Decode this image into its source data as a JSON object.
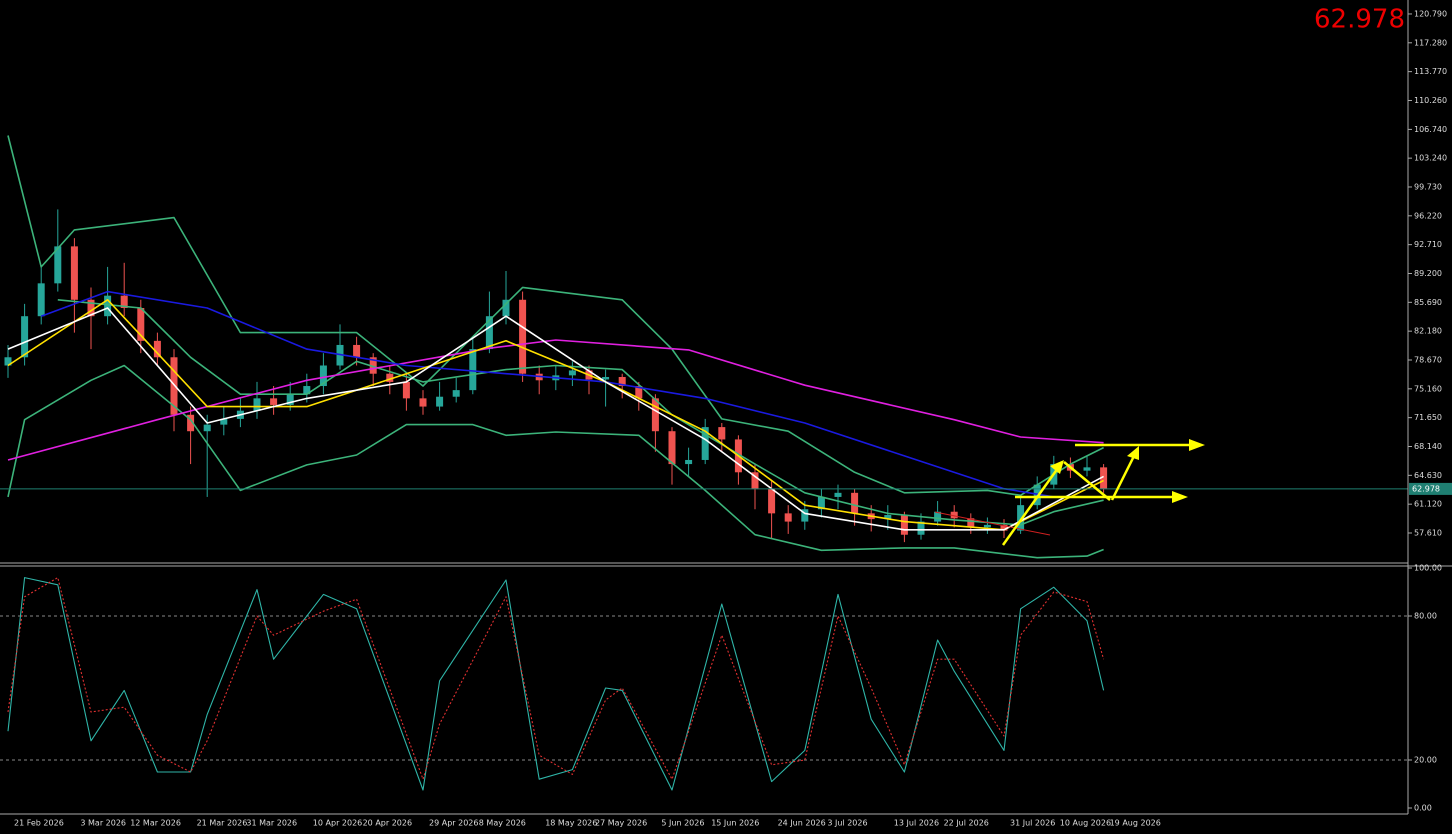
{
  "chart_data": [
    {
      "type": "candlestick",
      "categories": [
        "21 Feb 2026",
        null,
        null,
        null,
        "3 Mar 2026",
        null,
        null,
        "12 Mar 2026",
        null,
        null,
        null,
        "21 Mar 2026",
        null,
        null,
        "31 Mar 2026",
        null,
        null,
        null,
        "10 Apr 2026",
        null,
        null,
        "20 Apr 2026",
        null,
        null,
        null,
        "29 Apr 2026",
        null,
        null,
        "8 May 2026",
        null,
        null,
        null,
        "18 May 2026",
        null,
        null,
        "27 May 2026",
        null,
        null,
        null,
        "5 Jun 2026",
        null,
        null,
        "15 Jun 2026",
        null,
        null,
        null,
        "24 Jun 2026",
        null,
        null,
        "3 Jul 2026",
        null,
        null,
        null,
        "13 Jul 2026",
        null,
        null,
        "22 Jul 2026",
        null,
        null,
        null,
        "31 Jul 2026",
        null,
        null,
        "10 Aug 2026",
        null,
        null,
        "19 Aug 2026"
      ],
      "open": [
        78,
        79,
        84,
        88,
        92.5,
        86,
        84,
        86.5,
        85,
        81,
        79,
        72,
        70,
        70.8,
        71.5,
        72.5,
        74,
        73.2,
        74.5,
        75.5,
        78,
        80.5,
        79,
        77,
        76,
        74,
        73,
        74.2,
        75,
        80,
        84,
        86,
        77,
        76.2,
        76.8,
        77.4,
        76.3,
        76.6,
        75.5,
        74,
        70,
        66,
        66.5,
        70.5,
        69,
        65,
        63,
        60,
        59,
        60.5,
        62,
        62.5,
        60,
        59.3,
        59.8,
        57.4,
        59,
        60.2,
        59.4,
        58.3,
        58.6,
        57.9,
        61,
        63.5,
        66,
        65.2,
        65.6
      ],
      "high": [
        80.5,
        85.5,
        90,
        97,
        93.5,
        87.5,
        90,
        90.5,
        86,
        82,
        80,
        73,
        72,
        73,
        74,
        76,
        75.5,
        76,
        77,
        79.5,
        83,
        81.5,
        79.5,
        78,
        77,
        75,
        76,
        76.5,
        81.5,
        87,
        89.5,
        87,
        78,
        78,
        78.5,
        78,
        77.5,
        77,
        76,
        74.5,
        70.5,
        68,
        71.5,
        71,
        69.5,
        66,
        64,
        61,
        61.5,
        63,
        63.5,
        63,
        61,
        61,
        60.2,
        60,
        61.5,
        61,
        60,
        59.5,
        59.3,
        62,
        64.5,
        67,
        66.8,
        67,
        66
      ],
      "low": [
        76.5,
        78,
        83,
        87,
        82,
        80,
        83,
        84,
        79.5,
        78,
        70,
        66,
        62,
        69.5,
        70.5,
        71.5,
        72,
        72.5,
        73.5,
        74.5,
        77.5,
        78,
        75.5,
        74.5,
        72.5,
        72,
        72.5,
        73.5,
        74.5,
        79.5,
        83,
        76,
        74.5,
        75,
        75.5,
        74.5,
        73,
        74,
        72.5,
        67.5,
        63.5,
        64.5,
        66,
        67.5,
        63.5,
        60.5,
        57,
        57.5,
        58,
        59.5,
        60.5,
        58.5,
        57.8,
        58,
        56.5,
        56.8,
        58.5,
        58.3,
        57.5,
        57.5,
        57,
        57.5,
        60.5,
        63,
        64.3,
        64.5,
        62.5
      ],
      "close": [
        79,
        84,
        88,
        92.5,
        86,
        84,
        86.5,
        85,
        81,
        79,
        72,
        70,
        70.8,
        71.5,
        72.5,
        74,
        73.2,
        74.5,
        75.5,
        78,
        80.5,
        79,
        77,
        76,
        74,
        73,
        74.2,
        75,
        80,
        84,
        86,
        77,
        76.2,
        76.8,
        77.4,
        76.3,
        76.6,
        75.5,
        74,
        70,
        66,
        66.5,
        70.5,
        69,
        65,
        63,
        60,
        59,
        60.5,
        62,
        62.5,
        60,
        59.3,
        59.8,
        57.4,
        59,
        60.2,
        59.4,
        58.3,
        58.6,
        57.9,
        61,
        63.5,
        66,
        65.2,
        65.6,
        62.978
      ],
      "up_color": "#26a69a",
      "down_color": "#ef5350",
      "last_price": 62.978,
      "ylim": [
        54.08,
        122.49
      ],
      "yticks": [
        {
          "value": 120.79,
          "label": "120.790"
        },
        {
          "value": 117.28,
          "label": "117.280"
        },
        {
          "value": 113.77,
          "label": "113.770"
        },
        {
          "value": 110.26,
          "label": "110.260"
        },
        {
          "value": 106.74,
          "label": "106.740"
        },
        {
          "value": 103.24,
          "label": "103.240"
        },
        {
          "value": 99.73,
          "label": "99.730"
        },
        {
          "value": 96.22,
          "label": "96.220"
        },
        {
          "value": 92.71,
          "label": "92.710"
        },
        {
          "value": 89.2,
          "label": "89.200"
        },
        {
          "value": 85.69,
          "label": "85.690"
        },
        {
          "value": 82.18,
          "label": "82.180"
        },
        {
          "value": 78.67,
          "label": "78.670"
        },
        {
          "value": 75.16,
          "label": "75.160"
        },
        {
          "value": 71.65,
          "label": "71.650"
        },
        {
          "value": 68.14,
          "label": "68.140"
        },
        {
          "value": 64.63,
          "label": "64.630"
        },
        {
          "value": 61.12,
          "label": "61.120"
        },
        {
          "value": 57.61,
          "label": "57.610"
        }
      ],
      "overlays": [
        {
          "color": "#3cb37a",
          "x": [
            0,
            2,
            4,
            10,
            14,
            21,
            25,
            29,
            31,
            37,
            40,
            43,
            47,
            51,
            54,
            59,
            61,
            64,
            66
          ],
          "values": [
            106,
            90,
            94.5,
            96,
            82,
            82,
            75.5,
            83.5,
            87.5,
            86,
            80,
            71.5,
            70,
            65,
            62.5,
            62.8,
            62.2,
            66,
            68
          ]
        },
        {
          "color": "#3cb37a",
          "x": [
            3,
            8,
            11,
            14,
            18,
            21,
            25,
            30,
            33,
            37,
            40,
            45,
            48,
            53,
            57,
            61,
            63,
            66
          ],
          "values": [
            86,
            85,
            79,
            74.5,
            74.5,
            78.5,
            76,
            77.5,
            78,
            77.5,
            72,
            66,
            62.5,
            60,
            59.2,
            58.6,
            60.2,
            61.6
          ]
        },
        {
          "color": "#3cb37a",
          "x": [
            0,
            1,
            5,
            7,
            11,
            14,
            18,
            21,
            24,
            28,
            30,
            33,
            38,
            42,
            45,
            49,
            54,
            57,
            62,
            65,
            66
          ],
          "values": [
            62,
            71.4,
            76.2,
            78,
            71.4,
            62.8,
            65.9,
            67.1,
            70.8,
            70.8,
            69.5,
            69.9,
            69.5,
            62.8,
            57.4,
            55.5,
            55.8,
            55.8,
            54.6,
            54.8,
            55.6
          ]
        },
        {
          "color": "#e020e0",
          "x": [
            0,
            9,
            18,
            29,
            33,
            41,
            48,
            57,
            61,
            66
          ],
          "values": [
            66.5,
            71.4,
            76.2,
            80.1,
            81.1,
            79.9,
            75.6,
            71.4,
            69.3,
            68.6
          ]
        },
        {
          "color": "#1a1ae0",
          "x": [
            2,
            6,
            12,
            18,
            24,
            30,
            36,
            42,
            48,
            54,
            60,
            63
          ],
          "values": [
            84,
            87,
            85,
            80,
            78,
            77,
            76,
            74,
            71,
            67,
            63,
            62
          ]
        },
        {
          "color": "#ffe000",
          "x": [
            0,
            6,
            12,
            18,
            24,
            30,
            36,
            42,
            48,
            54,
            60,
            66
          ],
          "values": [
            78,
            86,
            73,
            73,
            77,
            81,
            76,
            70,
            61,
            59,
            58,
            64
          ]
        },
        {
          "color": "#ffffff",
          "x": [
            0,
            6,
            12,
            18,
            24,
            30,
            36,
            42,
            48,
            54,
            60,
            66
          ],
          "values": [
            80,
            85,
            71,
            74,
            76,
            84,
            76,
            69,
            60,
            58,
            58,
            64.5
          ]
        }
      ]
    },
    {
      "type": "line",
      "ylim": [
        0,
        100
      ],
      "yticks": [
        {
          "value": 100,
          "label": "100.00"
        },
        {
          "value": 80,
          "label": "80.00"
        },
        {
          "value": 20,
          "label": "20.00"
        },
        {
          "value": 0,
          "label": "0.00"
        }
      ],
      "series": [
        {
          "color": "#2fb5a8",
          "x": [
            0,
            1,
            3,
            5,
            7,
            9,
            11,
            12,
            15,
            16,
            19,
            21,
            25,
            26,
            30,
            32,
            34,
            36,
            37,
            40,
            43,
            46,
            48,
            50,
            52,
            54,
            56,
            57,
            60,
            61,
            63,
            65,
            66
          ],
          "values": [
            32,
            96,
            93,
            28,
            49,
            15,
            15,
            39,
            91,
            62,
            89,
            83,
            7.5,
            53,
            95,
            12,
            16,
            50,
            49,
            7.5,
            85,
            11,
            24,
            89,
            37,
            15,
            70,
            57,
            24,
            83,
            92,
            78,
            49
          ]
        },
        {
          "color": "#e03030",
          "dashed": true,
          "x": [
            0,
            1,
            3,
            5,
            7,
            9,
            11,
            12,
            15,
            16,
            19,
            21,
            25,
            26,
            30,
            32,
            34,
            36,
            37,
            40,
            43,
            46,
            48,
            50,
            52,
            54,
            56,
            57,
            60,
            61,
            63,
            65,
            66
          ],
          "values": [
            40,
            88,
            96,
            40,
            42,
            22,
            15,
            28,
            80,
            72,
            82,
            87,
            12,
            35,
            88,
            22,
            14,
            45,
            50,
            12,
            72,
            18,
            20,
            80,
            50,
            18,
            62,
            62,
            30,
            72,
            90,
            86,
            62
          ]
        }
      ]
    }
  ]
}
